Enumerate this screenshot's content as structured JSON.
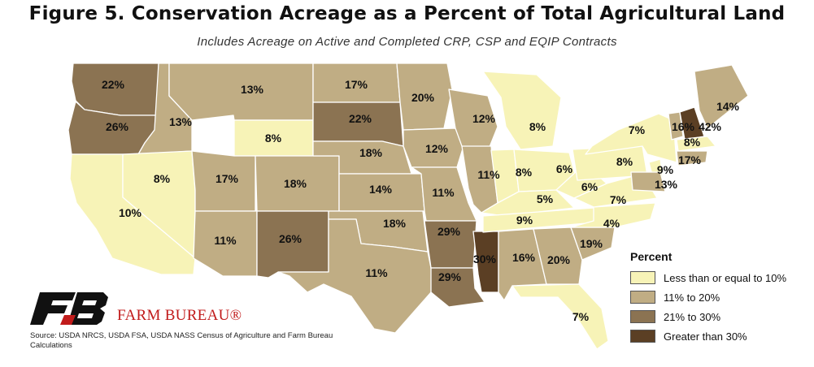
{
  "title": "Figure 5. Conservation Acreage as a Percent of Total Agricultural Land",
  "subtitle": "Includes Acreage on Active and Completed CRP, CSP and EQIP Contracts",
  "legend": {
    "title": "Percent",
    "items": [
      {
        "label": "Less than or equal to 10%",
        "color": "#f7f3b7"
      },
      {
        "label": "11% to 20%",
        "color": "#c0ad84"
      },
      {
        "label": "21% to 30%",
        "color": "#8b7352"
      },
      {
        "label": "Greater than 30%",
        "color": "#5b3f24"
      }
    ]
  },
  "states": [
    {
      "name": "WA",
      "value": "22%",
      "color": "#8b7352"
    },
    {
      "name": "OR",
      "value": "26%",
      "color": "#8b7352"
    },
    {
      "name": "CA",
      "value": "10%",
      "color": "#f7f3b7"
    },
    {
      "name": "ID",
      "value": "13%",
      "color": "#c0ad84"
    },
    {
      "name": "NV",
      "value": "8%",
      "color": "#f7f3b7"
    },
    {
      "name": "MT",
      "value": "13%",
      "color": "#c0ad84"
    },
    {
      "name": "WY",
      "value": "8%",
      "color": "#f7f3b7"
    },
    {
      "name": "UT",
      "value": "17%",
      "color": "#c0ad84"
    },
    {
      "name": "AZ",
      "value": "11%",
      "color": "#c0ad84"
    },
    {
      "name": "CO",
      "value": "18%",
      "color": "#c0ad84"
    },
    {
      "name": "NM",
      "value": "26%",
      "color": "#8b7352"
    },
    {
      "name": "ND",
      "value": "17%",
      "color": "#c0ad84"
    },
    {
      "name": "SD",
      "value": "22%",
      "color": "#8b7352"
    },
    {
      "name": "NE",
      "value": "18%",
      "color": "#c0ad84"
    },
    {
      "name": "KS",
      "value": "14%",
      "color": "#c0ad84"
    },
    {
      "name": "OK",
      "value": "18%",
      "color": "#c0ad84"
    },
    {
      "name": "TX",
      "value": "11%",
      "color": "#c0ad84"
    },
    {
      "name": "MN",
      "value": "20%",
      "color": "#c0ad84"
    },
    {
      "name": "IA",
      "value": "12%",
      "color": "#c0ad84"
    },
    {
      "name": "MO",
      "value": "11%",
      "color": "#c0ad84"
    },
    {
      "name": "AR",
      "value": "29%",
      "color": "#8b7352"
    },
    {
      "name": "LA",
      "value": "29%",
      "color": "#8b7352"
    },
    {
      "name": "WI",
      "value": "12%",
      "color": "#c0ad84"
    },
    {
      "name": "IL",
      "value": "11%",
      "color": "#c0ad84"
    },
    {
      "name": "MS",
      "value": "30%",
      "color": "#5b3f24"
    },
    {
      "name": "MI",
      "value": "8%",
      "color": "#f7f3b7"
    },
    {
      "name": "IN",
      "value": "8%",
      "color": "#f7f3b7"
    },
    {
      "name": "OH",
      "value": "6%",
      "color": "#f7f3b7"
    },
    {
      "name": "KY",
      "value": "5%",
      "color": "#f7f3b7"
    },
    {
      "name": "TN",
      "value": "9%",
      "color": "#f7f3b7"
    },
    {
      "name": "AL",
      "value": "16%",
      "color": "#c0ad84"
    },
    {
      "name": "GA",
      "value": "20%",
      "color": "#c0ad84"
    },
    {
      "name": "FL",
      "value": "7%",
      "color": "#f7f3b7"
    },
    {
      "name": "SC",
      "value": "19%",
      "color": "#c0ad84"
    },
    {
      "name": "NC",
      "value": "4%",
      "color": "#f7f3b7"
    },
    {
      "name": "VA",
      "value": "7%",
      "color": "#f7f3b7"
    },
    {
      "name": "WV",
      "value": "6%",
      "color": "#f7f3b7"
    },
    {
      "name": "PA",
      "value": "8%",
      "color": "#f7f3b7"
    },
    {
      "name": "NY",
      "value": "7%",
      "color": "#f7f3b7"
    },
    {
      "name": "VT",
      "value": "16%",
      "color": "#c0ad84"
    },
    {
      "name": "NH",
      "value": "42%",
      "color": "#5b3f24"
    },
    {
      "name": "ME",
      "value": "14%",
      "color": "#c0ad84"
    },
    {
      "name": "MA",
      "value": "8%",
      "color": "#f7f3b7"
    },
    {
      "name": "CT-RI",
      "value": "17%",
      "color": "#c0ad84"
    },
    {
      "name": "NJ",
      "value": "9%",
      "color": "#f7f3b7"
    },
    {
      "name": "MD-DE",
      "value": "13%",
      "color": "#c0ad84"
    }
  ],
  "brand": "FARM BUREAU®",
  "source": "Source: USDA NRCS, USDA FSA, USDA NASS Census of Agriculture and Farm Bureau Calculations"
}
